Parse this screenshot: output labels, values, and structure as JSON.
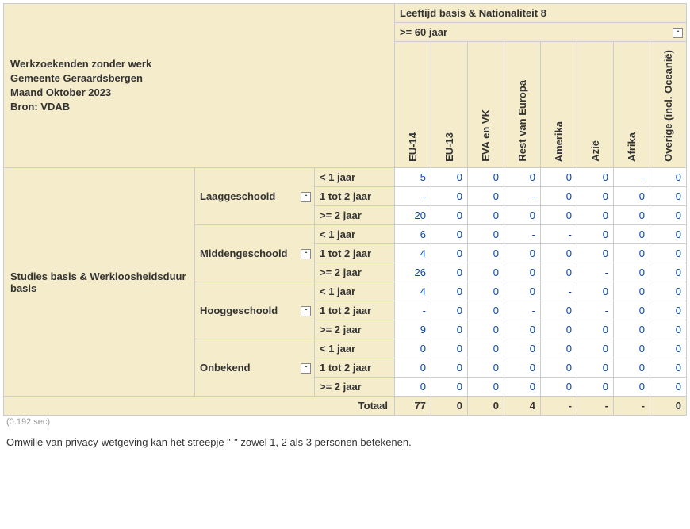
{
  "header": {
    "title_lines": [
      "Werkzoekenden zonder werk",
      "Gemeente Geraardsbergen",
      "Maand Oktober 2023",
      "Bron: VDAB"
    ],
    "col_top": "Leeftijd basis & Nationaliteit 8",
    "col_sub": ">= 60 jaar",
    "nationalities": [
      "EU-14",
      "EU-13",
      "EVA en VK",
      "Rest van Europa",
      "Amerika",
      "Azië",
      "Afrika",
      "Overige (incl. Oceanië)"
    ]
  },
  "row_header_l1": "Studies basis & Werkloosheidsduur basis",
  "education_levels": [
    "Laaggeschoold",
    "Middengeschoold",
    "Hooggeschoold",
    "Onbekend"
  ],
  "durations": [
    "< 1 jaar",
    "1 tot 2 jaar",
    ">= 2 jaar"
  ],
  "data": [
    [
      "5",
      "0",
      "0",
      "0",
      "0",
      "0",
      "-",
      "0"
    ],
    [
      "-",
      "0",
      "0",
      "-",
      "0",
      "0",
      "0",
      "0"
    ],
    [
      "20",
      "0",
      "0",
      "0",
      "0",
      "0",
      "0",
      "0"
    ],
    [
      "6",
      "0",
      "0",
      "-",
      "-",
      "0",
      "0",
      "0"
    ],
    [
      "4",
      "0",
      "0",
      "0",
      "0",
      "0",
      "0",
      "0"
    ],
    [
      "26",
      "0",
      "0",
      "0",
      "0",
      "-",
      "0",
      "0"
    ],
    [
      "4",
      "0",
      "0",
      "0",
      "-",
      "0",
      "0",
      "0"
    ],
    [
      "-",
      "0",
      "0",
      "-",
      "0",
      "-",
      "0",
      "0"
    ],
    [
      "9",
      "0",
      "0",
      "0",
      "0",
      "0",
      "0",
      "0"
    ],
    [
      "0",
      "0",
      "0",
      "0",
      "0",
      "0",
      "0",
      "0"
    ],
    [
      "0",
      "0",
      "0",
      "0",
      "0",
      "0",
      "0",
      "0"
    ],
    [
      "0",
      "0",
      "0",
      "0",
      "0",
      "0",
      "0",
      "0"
    ]
  ],
  "total_label": "Totaal",
  "totals": [
    "77",
    "0",
    "0",
    "4",
    "-",
    "-",
    "-",
    "0"
  ],
  "timing": "(0.192 sec)",
  "footnote": "Omwille van privacy-wetgeving kan het streepje \"-\" zowel 1, 2 als 3 personen betekenen.",
  "collapse_glyph": "-"
}
